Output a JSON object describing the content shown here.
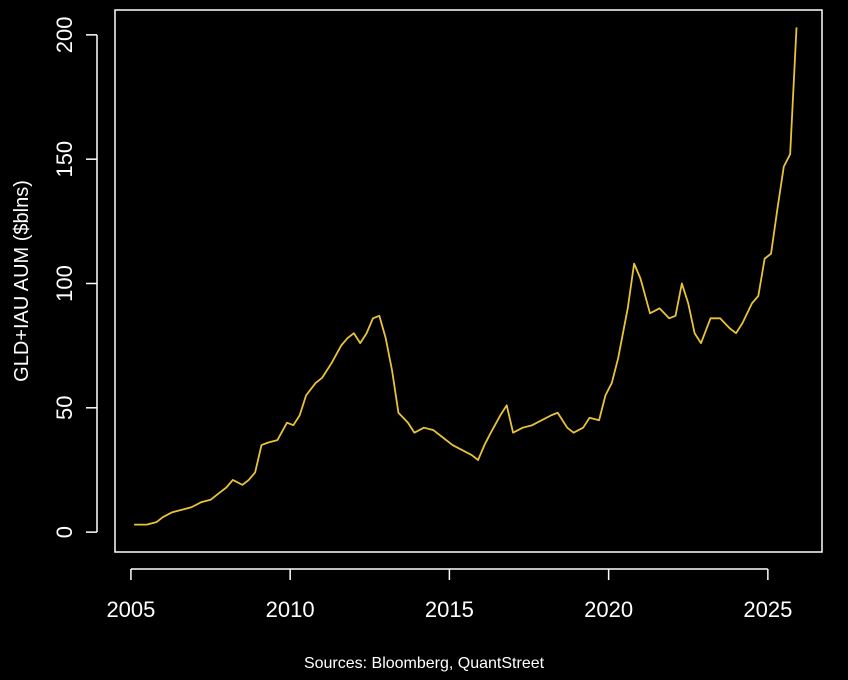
{
  "chart_data": {
    "type": "line",
    "title": "",
    "xlabel": "",
    "ylabel": "GLD+IAU AUM ($blns)",
    "source": "Sources: Bloomberg, QuantStreet",
    "xlim": [
      2004.5,
      2026.7
    ],
    "ylim": [
      -8,
      210
    ],
    "x_ticks": [
      2005,
      2010,
      2015,
      2020,
      2025
    ],
    "y_ticks": [
      0,
      50,
      100,
      150,
      200
    ],
    "grid": false,
    "legend": "none",
    "line_color": "#e8c33a",
    "axis_color": "#ffffff",
    "background": "#000000",
    "series": [
      {
        "x": [
          2005.1,
          2005.5,
          2005.8,
          2006.0,
          2006.3,
          2006.6,
          2006.9,
          2007.2,
          2007.5,
          2007.8,
          2008.0,
          2008.2,
          2008.5,
          2008.7,
          2008.9,
          2009.1,
          2009.3,
          2009.6,
          2009.9,
          2010.1,
          2010.3,
          2010.5,
          2010.8,
          2011.0,
          2011.3,
          2011.6,
          2011.8,
          2012.0,
          2012.2,
          2012.4,
          2012.6,
          2012.8,
          2013.0,
          2013.2,
          2013.4,
          2013.7,
          2013.9,
          2014.2,
          2014.5,
          2014.8,
          2015.1,
          2015.4,
          2015.7,
          2015.9,
          2016.1,
          2016.3,
          2016.6,
          2016.8,
          2017.0,
          2017.3,
          2017.6,
          2017.9,
          2018.2,
          2018.4,
          2018.7,
          2018.9,
          2019.2,
          2019.4,
          2019.7,
          2019.9,
          2020.1,
          2020.3,
          2020.6,
          2020.8,
          2021.0,
          2021.3,
          2021.6,
          2021.9,
          2022.1,
          2022.3,
          2022.5,
          2022.7,
          2022.9,
          2023.2,
          2023.5,
          2023.8,
          2024.0,
          2024.2,
          2024.5,
          2024.7,
          2024.9,
          2025.1,
          2025.3,
          2025.5,
          2025.7,
          2025.9
        ],
        "values": [
          3,
          3,
          4,
          6,
          8,
          9,
          10,
          12,
          13,
          16,
          18,
          21,
          19,
          21,
          24,
          35,
          36,
          37,
          44,
          43,
          47,
          55,
          60,
          62,
          68,
          75,
          78,
          80,
          76,
          80,
          86,
          87,
          78,
          65,
          48,
          44,
          40,
          42,
          41,
          38,
          35,
          33,
          31,
          29,
          35,
          40,
          47,
          51,
          40,
          42,
          43,
          45,
          47,
          48,
          42,
          40,
          42,
          46,
          45,
          55,
          60,
          70,
          90,
          108,
          102,
          88,
          90,
          86,
          87,
          100,
          92,
          80,
          76,
          86,
          86,
          82,
          80,
          84,
          92,
          95,
          110,
          112,
          130,
          147,
          152,
          203
        ]
      }
    ]
  }
}
